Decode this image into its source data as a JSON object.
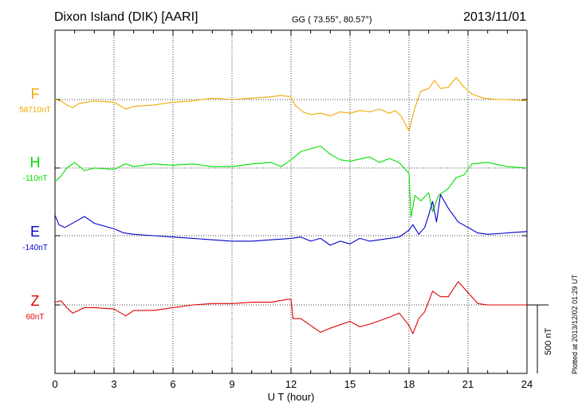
{
  "header": {
    "station": "Dixon Island (DIK)  [AARI]",
    "coords": "GG ( 73.55°,  80.57°)",
    "date": "2013/11/01"
  },
  "footer": {
    "plotted": "Plotted at 2013/12/02 01:29 UT",
    "scale_label": "500 nT"
  },
  "colors": {
    "F": "#f0a800",
    "H": "#00e000",
    "E": "#0000cc",
    "Z": "#e00000"
  },
  "chart_data": {
    "type": "line",
    "title": "Dixon Island (DIK)  [AARI]",
    "xlabel": "U T (hour)",
    "ylabel": "",
    "xlim": [
      0,
      24
    ],
    "x_ticks": [
      0,
      3,
      6,
      9,
      12,
      15,
      18,
      21,
      24
    ],
    "x_tick_labels": [
      "0",
      "3",
      "6",
      "9",
      "12",
      "15",
      "18",
      "21",
      "24"
    ],
    "grid": true,
    "scale_bar_nT": 500,
    "series": [
      {
        "name": "F",
        "baseline_label": "58710nT",
        "color": "#f0a800",
        "x": [
          0,
          0.3,
          0.6,
          0.9,
          1.2,
          2,
          3,
          3.6,
          4,
          5,
          6,
          7,
          8,
          9,
          10,
          11,
          11.5,
          12,
          12.2,
          12.6,
          13,
          13.5,
          14,
          14.5,
          15,
          15.5,
          16,
          16.5,
          17,
          17.3,
          17.6,
          18,
          18.3,
          18.6,
          19,
          19.3,
          19.6,
          20,
          20.4,
          20.8,
          21.2,
          21.8,
          22.5,
          23,
          24
        ],
        "y": [
          0,
          -10,
          -40,
          -60,
          -30,
          -10,
          -20,
          -70,
          -50,
          -40,
          -20,
          -10,
          10,
          0,
          10,
          20,
          30,
          20,
          -40,
          -90,
          -110,
          -100,
          -120,
          -90,
          -100,
          -80,
          -90,
          -70,
          -100,
          -80,
          -120,
          -230,
          -60,
          60,
          80,
          140,
          80,
          90,
          160,
          90,
          40,
          10,
          0,
          0,
          -10
        ]
      },
      {
        "name": "H",
        "baseline_label": "-110nT",
        "color": "#00e000",
        "x": [
          0,
          0.3,
          0.6,
          1,
          1.5,
          2,
          3,
          3.6,
          4,
          5,
          6,
          7,
          8,
          9,
          10,
          11,
          11.5,
          12,
          12.5,
          13,
          13.5,
          14,
          14.5,
          15,
          16,
          16.5,
          17,
          17.5,
          18,
          18.1,
          18.3,
          18.6,
          19,
          19.2,
          19.5,
          20,
          20.4,
          20.8,
          21.2,
          22,
          23,
          24
        ],
        "y": [
          -100,
          -60,
          0,
          40,
          -20,
          0,
          -10,
          30,
          10,
          30,
          20,
          30,
          10,
          10,
          30,
          40,
          10,
          60,
          120,
          140,
          160,
          100,
          60,
          50,
          80,
          40,
          70,
          40,
          -40,
          -360,
          -200,
          -240,
          -180,
          -320,
          -200,
          -150,
          -70,
          -50,
          30,
          40,
          10,
          0
        ]
      },
      {
        "name": "E",
        "baseline_label": "-140nT",
        "color": "#0000cc",
        "x": [
          0,
          0.2,
          0.5,
          1,
          1.5,
          2,
          3,
          3.5,
          4,
          5,
          6,
          7,
          8,
          9,
          10,
          11,
          12,
          12.5,
          13,
          13.5,
          14,
          14.5,
          15,
          15.5,
          16,
          17,
          17.5,
          18,
          18.2,
          18.5,
          18.8,
          19,
          19.2,
          19.4,
          19.6,
          20,
          20.5,
          21,
          21.5,
          22,
          23,
          24
        ],
        "y": [
          150,
          80,
          60,
          100,
          140,
          90,
          50,
          20,
          10,
          0,
          -10,
          -20,
          -30,
          -40,
          -40,
          -30,
          -20,
          -10,
          -40,
          -20,
          -70,
          -40,
          -60,
          -20,
          -40,
          -20,
          -10,
          40,
          80,
          10,
          60,
          150,
          250,
          100,
          300,
          200,
          100,
          60,
          20,
          10,
          20,
          30
        ]
      },
      {
        "name": "Z",
        "baseline_label": "60nT",
        "color": "#e00000",
        "x": [
          0,
          0.3,
          0.6,
          0.9,
          1.5,
          2,
          3,
          3.6,
          4,
          5,
          6,
          7,
          8,
          9,
          10,
          11,
          11.8,
          12,
          12.1,
          12.5,
          13,
          13.5,
          14,
          15,
          15.5,
          16,
          17,
          17.5,
          18,
          18.2,
          18.5,
          18.8,
          19.2,
          19.6,
          20,
          20.5,
          21,
          21.5,
          22,
          23,
          24
        ],
        "y": [
          20,
          30,
          -20,
          -60,
          -20,
          -20,
          -30,
          -80,
          -40,
          -40,
          -20,
          0,
          10,
          10,
          20,
          20,
          40,
          40,
          -100,
          -100,
          -150,
          -200,
          -170,
          -120,
          -160,
          -140,
          -90,
          -60,
          -150,
          -210,
          -100,
          -50,
          100,
          60,
          60,
          170,
          90,
          10,
          0,
          0,
          0
        ]
      }
    ]
  }
}
